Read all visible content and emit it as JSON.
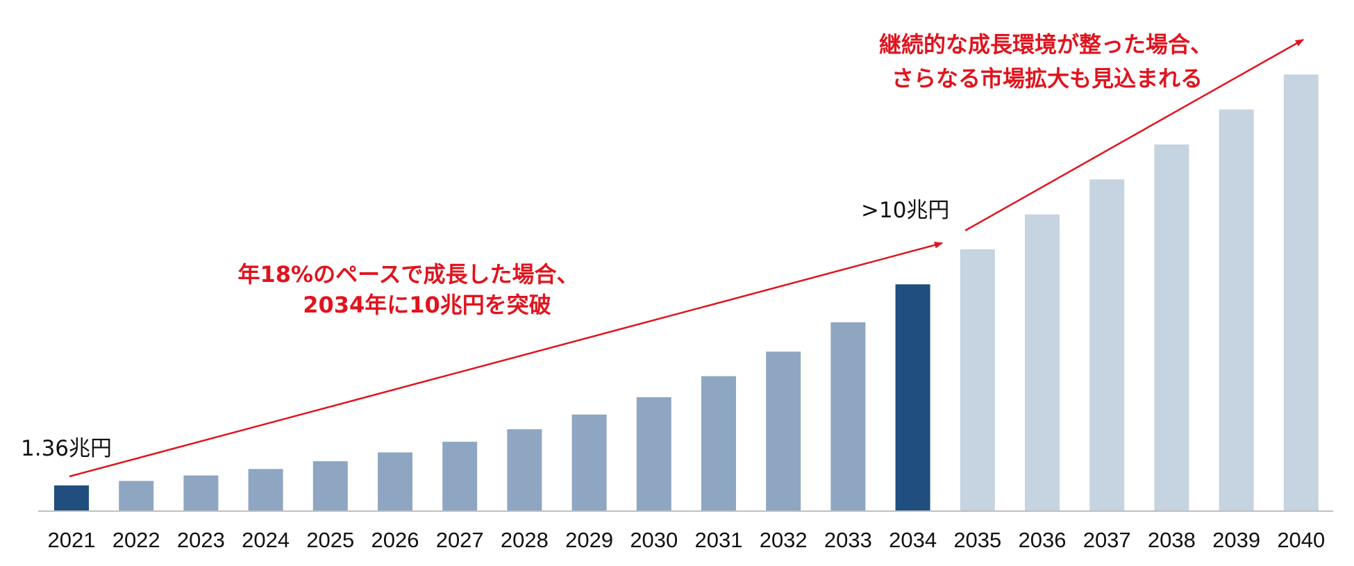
{
  "chart_data": {
    "type": "bar",
    "title": "",
    "xlabel": "",
    "ylabel": "",
    "ylim": [
      0,
      23
    ],
    "grid": false,
    "categories": [
      "2021",
      "2022",
      "2023",
      "2024",
      "2025",
      "2026",
      "2027",
      "2028",
      "2029",
      "2030",
      "2031",
      "2032",
      "2033",
      "2034",
      "2035",
      "2036",
      "2037",
      "2038",
      "2039",
      "2040"
    ],
    "values": [
      1.36,
      1.6,
      1.89,
      2.23,
      2.64,
      3.11,
      3.67,
      4.33,
      5.11,
      6.03,
      7.14,
      8.44,
      9.99,
      12.0,
      13.85,
      15.7,
      17.55,
      19.4,
      21.25,
      23.1
    ],
    "bar_colors": [
      "#1f4e7f",
      "#8ea6c1",
      "#8ea6c1",
      "#8ea6c1",
      "#8ea6c1",
      "#8ea6c1",
      "#8ea6c1",
      "#8ea6c1",
      "#8ea6c1",
      "#8ea6c1",
      "#8ea6c1",
      "#8ea6c1",
      "#8ea6c1",
      "#1f4e7f",
      "#c6d3e0",
      "#c6d3e0",
      "#c6d3e0",
      "#c6d3e0",
      "#c6d3e0",
      "#c6d3e0"
    ],
    "data_labels": [
      {
        "category": "2021",
        "text": "1.36兆円"
      },
      {
        "category": "2034",
        "text": ">10兆円"
      }
    ],
    "annotations": [
      {
        "lines": [
          "年18%のペースで成長した場合、",
          "2034年に10兆円を突破"
        ],
        "color": "#e0141e"
      },
      {
        "lines": [
          "継続的な成長環境が整った場合、",
          "さらなる市場拡大も見込まれる"
        ],
        "color": "#e0141e"
      }
    ],
    "colors": {
      "highlight": "#1f4e7f",
      "historic": "#8ea6c1",
      "projected": "#c6d3e0",
      "accent": "#e0141e",
      "axis": "#bfbfbf"
    }
  }
}
